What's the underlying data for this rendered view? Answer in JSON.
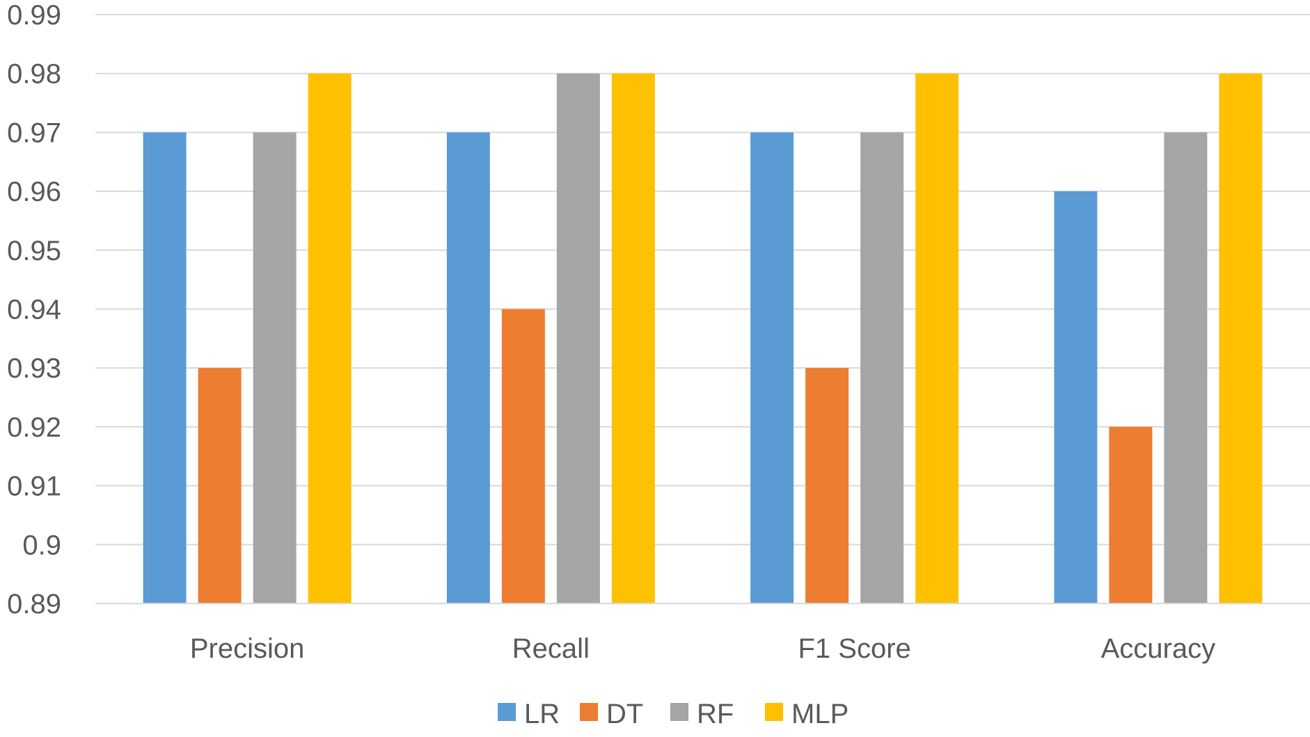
{
  "chart_data": {
    "type": "bar",
    "title": "",
    "xlabel": "",
    "ylabel": "",
    "categories": [
      "Precision",
      "Recall",
      "F1 Score",
      "Accuracy"
    ],
    "series": [
      {
        "name": "LR",
        "color": "#5b9bd5",
        "values": [
          0.97,
          0.97,
          0.97,
          0.96
        ]
      },
      {
        "name": "DT",
        "color": "#ed7d31",
        "values": [
          0.93,
          0.94,
          0.93,
          0.92
        ]
      },
      {
        "name": "RF",
        "color": "#a5a5a5",
        "values": [
          0.97,
          0.98,
          0.97,
          0.97
        ]
      },
      {
        "name": "MLP",
        "color": "#ffc000",
        "values": [
          0.98,
          0.98,
          0.98,
          0.98
        ]
      }
    ],
    "ylim": [
      0.89,
      0.99
    ],
    "yticks": [
      "0.99",
      "0.98",
      "0.97",
      "0.96",
      "0.95",
      "0.94",
      "0.93",
      "0.92",
      "0.91",
      "0.9",
      "0.89"
    ],
    "ytick_values": [
      0.99,
      0.98,
      0.97,
      0.96,
      0.95,
      0.94,
      0.93,
      0.92,
      0.91,
      0.9,
      0.89
    ],
    "grid": true,
    "legend_position": "bottom-center"
  }
}
